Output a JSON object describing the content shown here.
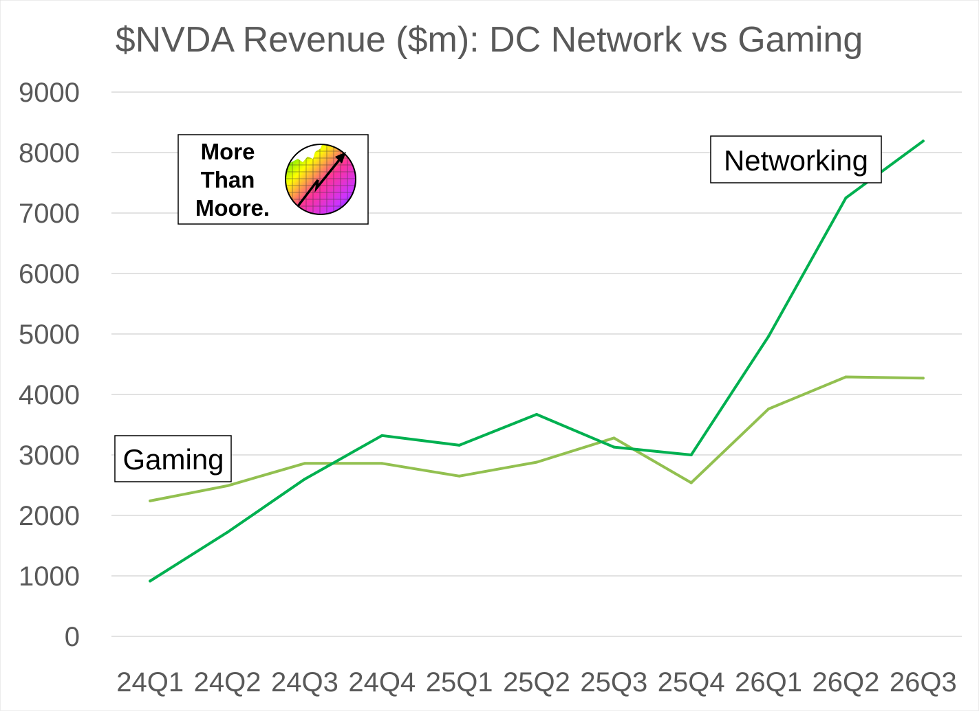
{
  "chart_data": {
    "type": "line",
    "title": "$NVDA Revenue ($m): DC Network vs Gaming",
    "xlabel": "",
    "ylabel": "",
    "ylim": [
      0,
      9000
    ],
    "yticks": [
      0,
      1000,
      2000,
      3000,
      4000,
      5000,
      6000,
      7000,
      8000,
      9000
    ],
    "grid": true,
    "categories": [
      "24Q1",
      "24Q2",
      "24Q3",
      "24Q4",
      "25Q1",
      "25Q2",
      "25Q3",
      "25Q4",
      "26Q1",
      "26Q2",
      "26Q3"
    ],
    "series": [
      {
        "name": "Networking",
        "color": "#00B050",
        "values": [
          915,
          1720,
          2600,
          3320,
          3160,
          3670,
          3130,
          3000,
          4960,
          7250,
          8190
        ]
      },
      {
        "name": "Gaming",
        "color": "#92C050",
        "values": [
          2240,
          2490,
          2860,
          2860,
          2650,
          2880,
          3280,
          2540,
          3760,
          4290,
          4270
        ]
      }
    ],
    "annotations": {
      "networking_label": "Networking",
      "gaming_label": "Gaming"
    }
  },
  "logo": {
    "line1": "More",
    "line2": "Than",
    "line3": "Moore."
  },
  "colors": {
    "text": "#595959",
    "grid": "#D9D9D9"
  }
}
